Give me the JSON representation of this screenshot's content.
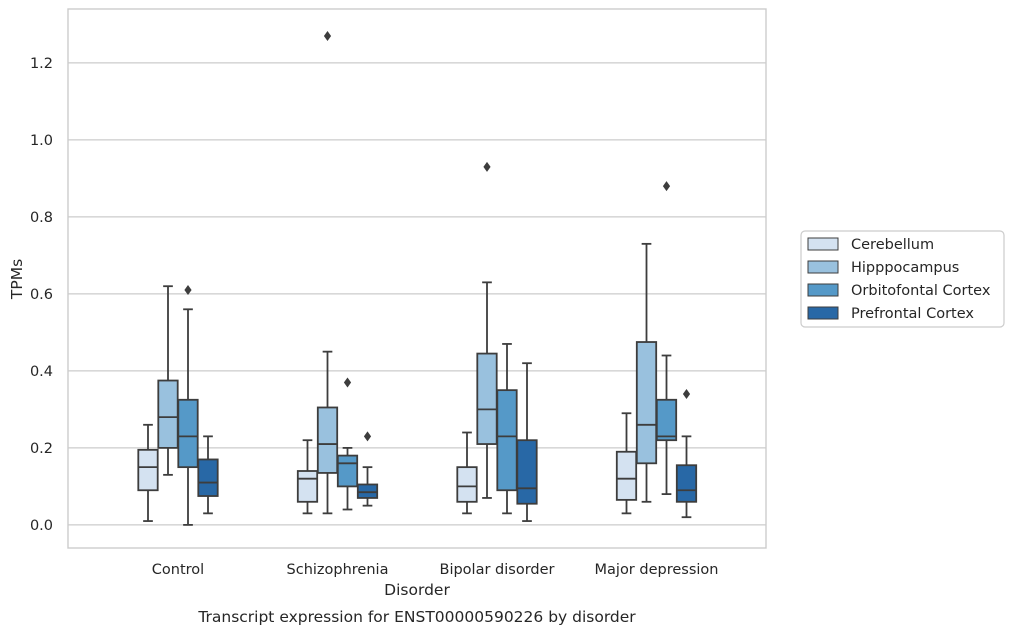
{
  "chart_data": {
    "type": "boxplot",
    "xlabel": "Disorder",
    "ylabel": "TPMs",
    "caption": "Transcript expression for ENST00000590226 by disorder",
    "ylim": [
      -0.06,
      1.34
    ],
    "yticks": [
      0.0,
      0.2,
      0.4,
      0.6,
      0.8,
      1.0,
      1.2
    ],
    "ytick_labels": [
      "0.0",
      "0.2",
      "0.4",
      "0.6",
      "0.8",
      "1.0",
      "1.2"
    ],
    "grid": "horizontal",
    "legend_position": "right",
    "categories": [
      "Control",
      "Schizophrenia",
      "Bipolar disorder",
      "Major depression"
    ],
    "series": [
      {
        "name": "Cerebellum",
        "color": "#d4e2f1",
        "boxes": [
          {
            "whislo": 0.01,
            "q1": 0.09,
            "med": 0.15,
            "q3": 0.195,
            "whishi": 0.26,
            "fliers": []
          },
          {
            "whislo": 0.03,
            "q1": 0.06,
            "med": 0.12,
            "q3": 0.14,
            "whishi": 0.22,
            "fliers": []
          },
          {
            "whislo": 0.03,
            "q1": 0.06,
            "med": 0.1,
            "q3": 0.15,
            "whishi": 0.24,
            "fliers": []
          },
          {
            "whislo": 0.03,
            "q1": 0.065,
            "med": 0.12,
            "q3": 0.19,
            "whishi": 0.29,
            "fliers": []
          }
        ]
      },
      {
        "name": "Hipppocampus",
        "color": "#99c1de",
        "boxes": [
          {
            "whislo": 0.13,
            "q1": 0.2,
            "med": 0.28,
            "q3": 0.375,
            "whishi": 0.62,
            "fliers": []
          },
          {
            "whislo": 0.03,
            "q1": 0.135,
            "med": 0.21,
            "q3": 0.305,
            "whishi": 0.45,
            "fliers": [
              1.27
            ]
          },
          {
            "whislo": 0.07,
            "q1": 0.21,
            "med": 0.3,
            "q3": 0.445,
            "whishi": 0.63,
            "fliers": [
              0.93
            ]
          },
          {
            "whislo": 0.06,
            "q1": 0.16,
            "med": 0.26,
            "q3": 0.475,
            "whishi": 0.73,
            "fliers": []
          }
        ]
      },
      {
        "name": "Orbitofontal Cortex",
        "color": "#5599c8",
        "boxes": [
          {
            "whislo": 0.0,
            "q1": 0.15,
            "med": 0.23,
            "q3": 0.325,
            "whishi": 0.56,
            "fliers": [
              0.61
            ]
          },
          {
            "whislo": 0.04,
            "q1": 0.1,
            "med": 0.16,
            "q3": 0.18,
            "whishi": 0.2,
            "fliers": [
              0.37
            ]
          },
          {
            "whislo": 0.03,
            "q1": 0.09,
            "med": 0.23,
            "q3": 0.35,
            "whishi": 0.47,
            "fliers": []
          },
          {
            "whislo": 0.08,
            "q1": 0.22,
            "med": 0.23,
            "q3": 0.325,
            "whishi": 0.44,
            "fliers": [
              0.88
            ]
          }
        ]
      },
      {
        "name": "Prefrontal Cortex",
        "color": "#2868a6",
        "boxes": [
          {
            "whislo": 0.03,
            "q1": 0.075,
            "med": 0.11,
            "q3": 0.17,
            "whishi": 0.23,
            "fliers": []
          },
          {
            "whislo": 0.05,
            "q1": 0.07,
            "med": 0.085,
            "q3": 0.105,
            "whishi": 0.15,
            "fliers": [
              0.23
            ]
          },
          {
            "whislo": 0.01,
            "q1": 0.055,
            "med": 0.095,
            "q3": 0.22,
            "whishi": 0.42,
            "fliers": []
          },
          {
            "whislo": 0.02,
            "q1": 0.06,
            "med": 0.09,
            "q3": 0.155,
            "whishi": 0.23,
            "fliers": [
              0.34
            ]
          }
        ]
      }
    ]
  }
}
